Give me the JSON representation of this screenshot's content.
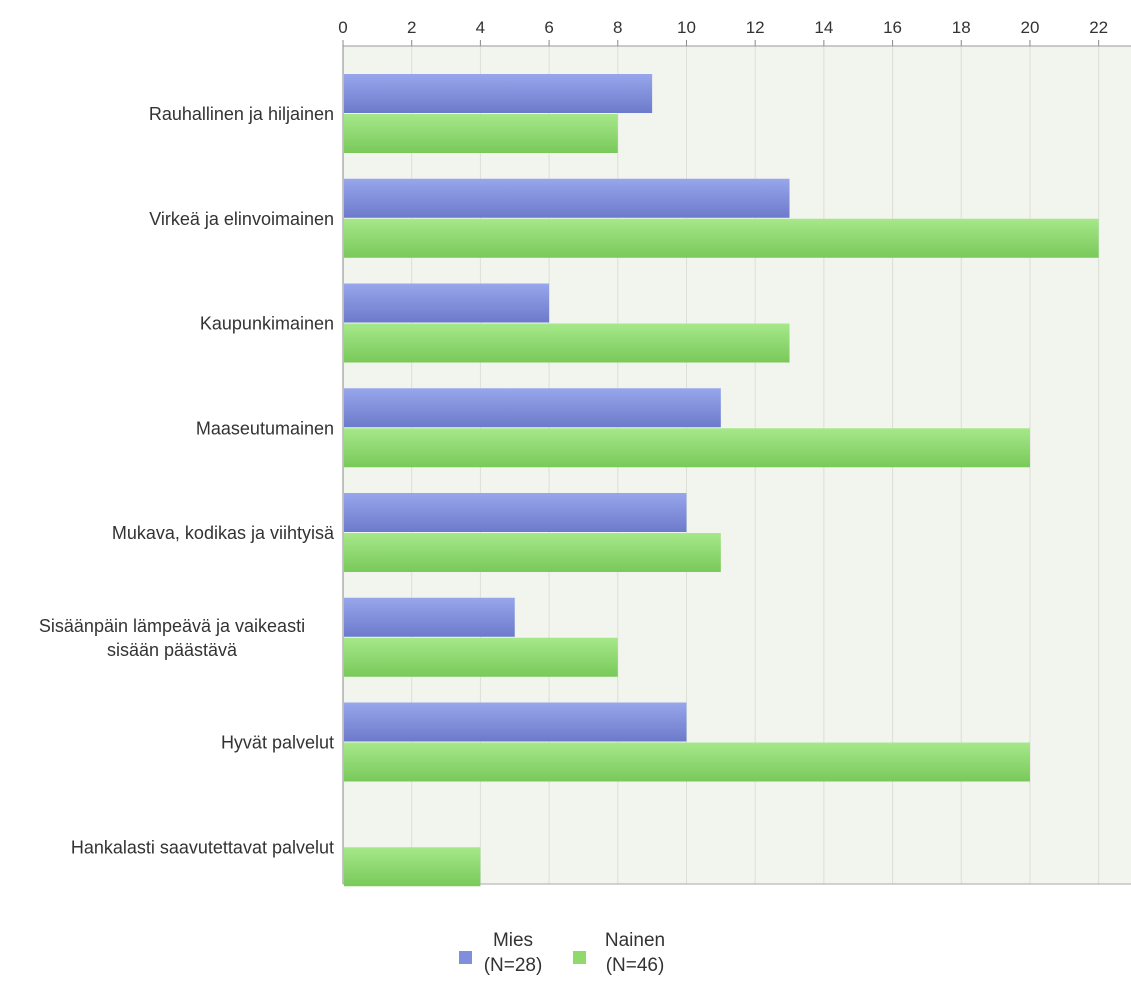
{
  "chart_data": {
    "type": "bar",
    "orientation": "horizontal",
    "categories": [
      "Rauhallinen ja hiljainen",
      "Virkeä ja elinvoimainen",
      "Kaupunkimainen",
      "Maaseutumainen",
      "Mukava, kodikas ja viihtyisä",
      "Sisäänpäin lämpeävä ja vaikeasti sisään päästävä",
      "Hyvät palvelut",
      "Hankalasti saavutettavat palvelut"
    ],
    "category_lines": [
      [
        "Rauhallinen ja hiljainen"
      ],
      [
        "Virkeä ja elinvoimainen"
      ],
      [
        "Kaupunkimainen"
      ],
      [
        "Maaseutumainen"
      ],
      [
        "Mukava, kodikas ja viihtyisä"
      ],
      [
        "Sisäänpäin lämpeävä ja vaikeasti",
        "sisään päästävä"
      ],
      [
        "Hyvät palvelut"
      ],
      [
        "Hankalasti saavutettavat palvelut"
      ]
    ],
    "series": [
      {
        "name": "Mies",
        "count_label": "(N=28)",
        "color": "#7f8fdc",
        "values": [
          9,
          13,
          6,
          11,
          10,
          5,
          10,
          0
        ]
      },
      {
        "name": "Nainen",
        "count_label": "(N=46)",
        "color": "#8fd96d",
        "values": [
          8,
          22,
          13,
          20,
          11,
          8,
          20,
          4
        ]
      }
    ],
    "xlim": [
      0,
      23
    ],
    "xticks": [
      0,
      2,
      4,
      6,
      8,
      10,
      12,
      14,
      16,
      18,
      20,
      22
    ],
    "axis_position": "top",
    "grid": true,
    "legend_position": "bottom"
  }
}
